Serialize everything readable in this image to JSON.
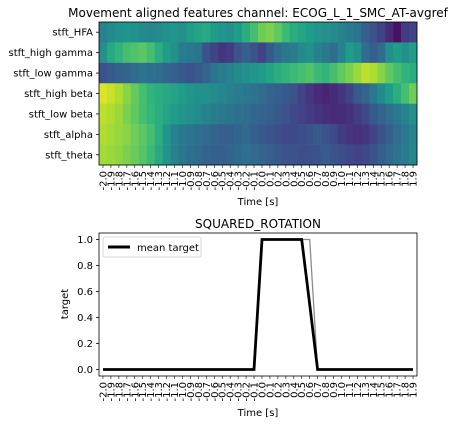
{
  "chart_data": [
    {
      "type": "heatmap",
      "title": "Movement aligned features channel: ECOG_L_1_SMC_AT-avgref",
      "xlabel": "Time [s]",
      "ylabel": "",
      "rows": [
        "stft_HFA",
        "stft_high gamma",
        "stft_low gamma",
        "stft_high beta",
        "stft_low beta",
        "stft_alpha",
        "stft_theta"
      ],
      "x_ticks": [
        "-2.0",
        "-1.9",
        "-1.8",
        "-1.7",
        "-1.6",
        "-1.5",
        "-1.4",
        "-1.3",
        "-1.2",
        "-1.1",
        "-1.0",
        "-0.9",
        "-0.8",
        "-0.7",
        "-0.6",
        "-0.5",
        "-0.4",
        "-0.3",
        "-0.2",
        "-0.1",
        "0.0",
        "0.1",
        "0.2",
        "0.3",
        "0.4",
        "0.5",
        "0.6",
        "0.7",
        "0.8",
        "0.9",
        "1.0",
        "1.1",
        "1.2",
        "1.3",
        "1.4",
        "1.5",
        "1.6",
        "1.7",
        "1.8",
        "1.9"
      ],
      "colormap": "viridis",
      "values": [
        [
          0.45,
          0.48,
          0.5,
          0.52,
          0.5,
          0.48,
          0.47,
          0.48,
          0.5,
          0.52,
          0.5,
          0.55,
          0.58,
          0.6,
          0.55,
          0.52,
          0.5,
          0.55,
          0.62,
          0.7,
          0.78,
          0.8,
          0.75,
          0.68,
          0.62,
          0.58,
          0.55,
          0.52,
          0.5,
          0.48,
          0.45,
          0.42,
          0.38,
          0.3,
          0.25,
          0.2,
          0.12,
          0.05,
          0.18,
          0.2
        ],
        [
          0.5,
          0.6,
          0.65,
          0.7,
          0.72,
          0.74,
          0.7,
          0.62,
          0.55,
          0.5,
          0.42,
          0.4,
          0.38,
          0.25,
          0.2,
          0.15,
          0.18,
          0.25,
          0.3,
          0.25,
          0.2,
          0.28,
          0.35,
          0.4,
          0.42,
          0.48,
          0.5,
          0.45,
          0.4,
          0.35,
          0.45,
          0.55,
          0.5,
          0.35,
          0.3,
          0.35,
          0.5,
          0.55,
          0.5,
          0.55
        ],
        [
          0.25,
          0.28,
          0.3,
          0.32,
          0.35,
          0.38,
          0.36,
          0.35,
          0.32,
          0.3,
          0.28,
          0.25,
          0.28,
          0.32,
          0.38,
          0.42,
          0.45,
          0.48,
          0.5,
          0.52,
          0.55,
          0.58,
          0.62,
          0.65,
          0.68,
          0.7,
          0.72,
          0.68,
          0.65,
          0.7,
          0.75,
          0.8,
          0.85,
          0.9,
          0.88,
          0.82,
          0.75,
          0.7,
          0.65,
          0.62
        ],
        [
          0.95,
          0.92,
          0.88,
          0.82,
          0.76,
          0.7,
          0.65,
          0.62,
          0.6,
          0.58,
          0.55,
          0.52,
          0.5,
          0.5,
          0.48,
          0.46,
          0.44,
          0.42,
          0.4,
          0.38,
          0.35,
          0.32,
          0.3,
          0.28,
          0.25,
          0.2,
          0.15,
          0.12,
          0.1,
          0.12,
          0.15,
          0.2,
          0.28,
          0.32,
          0.4,
          0.48,
          0.55,
          0.62,
          0.7,
          0.78
        ],
        [
          0.9,
          0.88,
          0.85,
          0.8,
          0.75,
          0.7,
          0.66,
          0.62,
          0.58,
          0.55,
          0.52,
          0.5,
          0.48,
          0.45,
          0.42,
          0.4,
          0.38,
          0.36,
          0.35,
          0.33,
          0.32,
          0.3,
          0.28,
          0.25,
          0.22,
          0.2,
          0.18,
          0.15,
          0.13,
          0.12,
          0.12,
          0.14,
          0.18,
          0.22,
          0.28,
          0.32,
          0.36,
          0.4,
          0.45,
          0.5
        ],
        [
          0.88,
          0.86,
          0.84,
          0.82,
          0.78,
          0.74,
          0.7,
          0.62,
          0.52,
          0.45,
          0.4,
          0.38,
          0.36,
          0.34,
          0.32,
          0.3,
          0.3,
          0.32,
          0.34,
          0.3,
          0.28,
          0.26,
          0.24,
          0.22,
          0.22,
          0.24,
          0.26,
          0.28,
          0.25,
          0.22,
          0.18,
          0.15,
          0.14,
          0.16,
          0.2,
          0.25,
          0.3,
          0.35,
          0.4,
          0.45
        ],
        [
          0.86,
          0.85,
          0.83,
          0.8,
          0.77,
          0.73,
          0.68,
          0.6,
          0.52,
          0.45,
          0.4,
          0.36,
          0.34,
          0.32,
          0.3,
          0.3,
          0.32,
          0.34,
          0.36,
          0.34,
          0.32,
          0.3,
          0.28,
          0.26,
          0.25,
          0.24,
          0.24,
          0.26,
          0.28,
          0.26,
          0.24,
          0.22,
          0.2,
          0.22,
          0.26,
          0.3,
          0.34,
          0.38,
          0.42,
          0.46
        ]
      ]
    },
    {
      "type": "line",
      "title": "SQUARED_ROTATION",
      "xlabel": "Time [s]",
      "ylabel": "target",
      "ylim": [
        -0.05,
        1.05
      ],
      "yticks": [
        "0.0",
        "0.2",
        "0.4",
        "0.6",
        "0.8",
        "1.0"
      ],
      "xlim": [
        -2.05,
        1.95
      ],
      "x_ticks": [
        "-2.0",
        "-1.9",
        "-1.8",
        "-1.7",
        "-1.6",
        "-1.5",
        "-1.4",
        "-1.3",
        "-1.2",
        "-1.1",
        "-1.0",
        "-0.9",
        "-0.8",
        "-0.7",
        "-0.6",
        "-0.5",
        "-0.4",
        "-0.3",
        "-0.2",
        "-0.1",
        "0.0",
        "0.1",
        "0.2",
        "0.3",
        "0.4",
        "0.5",
        "0.6",
        "0.7",
        "0.8",
        "0.9",
        "1.0",
        "1.1",
        "1.2",
        "1.3",
        "1.4",
        "1.5",
        "1.6",
        "1.7",
        "1.8",
        "1.9"
      ],
      "legend": {
        "label": "mean target",
        "location": "upper left"
      },
      "series": [
        {
          "name": "mean target",
          "color": "#000000",
          "x": [
            -2.0,
            -0.1,
            0.0,
            0.1,
            0.2,
            0.3,
            0.4,
            0.5,
            0.6,
            0.7,
            1.9
          ],
          "y": [
            0,
            0,
            1,
            1,
            1,
            1,
            1,
            1,
            0.5,
            0,
            0
          ]
        },
        {
          "name": "",
          "color": "#8c8c8c",
          "x": [
            -2.0,
            -0.1,
            0.0,
            0.1,
            0.2,
            0.3,
            0.4,
            0.5,
            0.6,
            0.7,
            1.9
          ],
          "y": [
            0,
            0,
            1,
            1,
            1,
            1,
            1,
            1,
            1,
            0,
            0
          ]
        }
      ]
    }
  ]
}
